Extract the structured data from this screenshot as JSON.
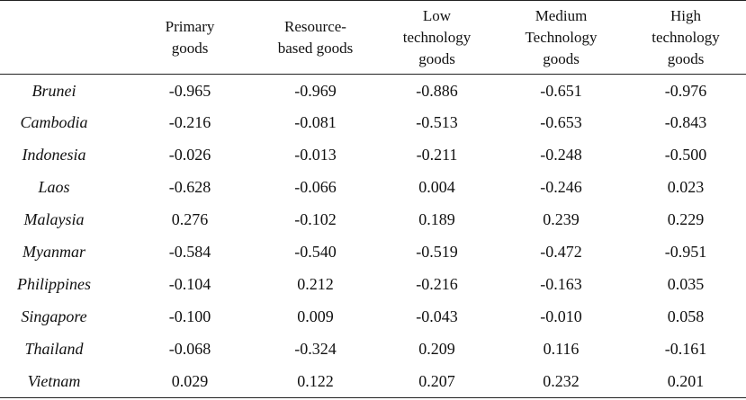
{
  "table": {
    "columns": [
      "",
      [
        "Primary",
        "goods"
      ],
      [
        "Resource-",
        "based goods"
      ],
      [
        "Low",
        "technology",
        "goods"
      ],
      [
        "Medium",
        "Technology",
        "goods"
      ],
      [
        "High",
        "technology",
        "goods"
      ]
    ],
    "rows": [
      {
        "country": "Brunei",
        "values": [
          "-0.965",
          "-0.969",
          "-0.886",
          "-0.651",
          "-0.976"
        ]
      },
      {
        "country": "Cambodia",
        "values": [
          "-0.216",
          "-0.081",
          "-0.513",
          "-0.653",
          "-0.843"
        ]
      },
      {
        "country": "Indonesia",
        "values": [
          "-0.026",
          "-0.013",
          "-0.211",
          "-0.248",
          "-0.500"
        ]
      },
      {
        "country": "Laos",
        "values": [
          "-0.628",
          "-0.066",
          "0.004",
          "-0.246",
          "0.023"
        ]
      },
      {
        "country": "Malaysia",
        "values": [
          "0.276",
          "-0.102",
          "0.189",
          "0.239",
          "0.229"
        ]
      },
      {
        "country": "Myanmar",
        "values": [
          "-0.584",
          "-0.540",
          "-0.519",
          "-0.472",
          "-0.951"
        ]
      },
      {
        "country": "Philippines",
        "values": [
          "-0.104",
          "0.212",
          "-0.216",
          "-0.163",
          "0.035"
        ]
      },
      {
        "country": "Singapore",
        "values": [
          "-0.100",
          "0.009",
          "-0.043",
          "-0.010",
          "0.058"
        ]
      },
      {
        "country": "Thailand",
        "values": [
          "-0.068",
          "-0.324",
          "0.209",
          "0.116",
          "-0.161"
        ]
      },
      {
        "country": "Vietnam",
        "values": [
          "0.029",
          "0.122",
          "0.207",
          "0.232",
          "0.201"
        ]
      }
    ]
  }
}
